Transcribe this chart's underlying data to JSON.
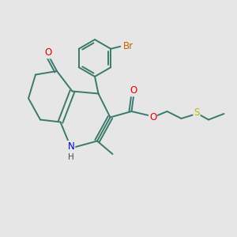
{
  "background_color": "#e6e6e6",
  "bond_color": "#3a7a6a",
  "bond_width": 1.4,
  "figsize": [
    3.0,
    3.0
  ],
  "dpi": 100,
  "atom_colors": {
    "Br": "#c86000",
    "O": "#dd0000",
    "N": "#0000cc",
    "S": "#bbbb00",
    "H": "#444444"
  },
  "xlim": [
    0,
    10
  ],
  "ylim": [
    0,
    10
  ]
}
